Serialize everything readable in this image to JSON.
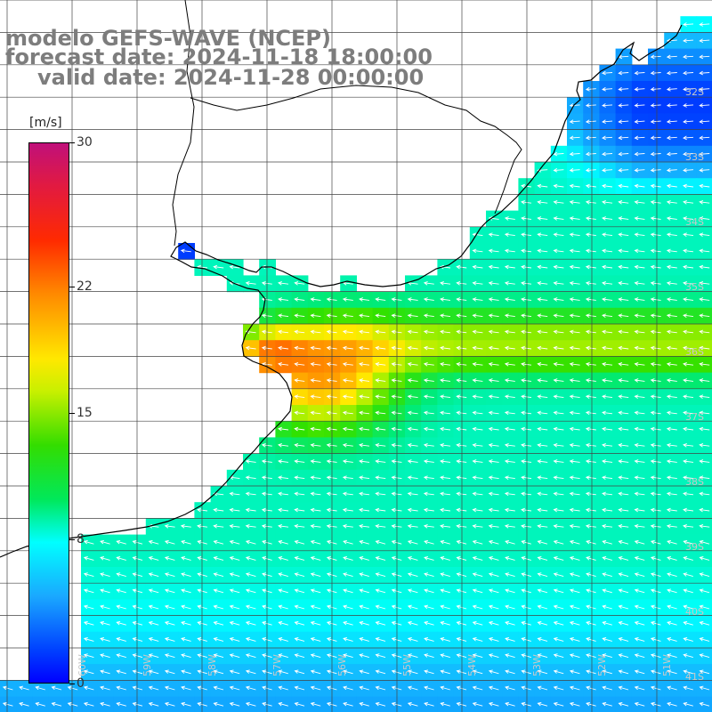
{
  "title": {
    "line1": "modelo GEFS-WAVE (NCEP)",
    "line2": "forecast date: 2024-11-18 18:00:00",
    "line3": "valid date: 2024-11-28 00:00:00"
  },
  "colorbar": {
    "unit": "[m/s]",
    "ticks": [
      {
        "label": "30",
        "value": 30
      },
      {
        "label": "22",
        "value": 22
      },
      {
        "label": "15",
        "value": 15
      },
      {
        "label": "8",
        "value": 8
      },
      {
        "label": "0",
        "value": 0
      }
    ],
    "colors": [
      "#0000ff",
      "#0040ff",
      "#1aa8ff",
      "#00ffff",
      "#00e85a",
      "#33dd00",
      "#c8f000",
      "#ffe800",
      "#ff8a00",
      "#ff2a00",
      "#e21a40",
      "#c0107a"
    ]
  },
  "lat_labels": [
    "32S",
    "33S",
    "34S",
    "35S",
    "36S",
    "37S",
    "38S",
    "39S",
    "40S",
    "41S"
  ],
  "lon_labels": [
    "60W",
    "59W",
    "58W",
    "57W",
    "56W",
    "55W",
    "54W",
    "53W",
    "52W",
    "51W"
  ],
  "field": {
    "variable": "wind speed",
    "units": "m/s",
    "max_approx": 18,
    "min_approx": 2
  }
}
